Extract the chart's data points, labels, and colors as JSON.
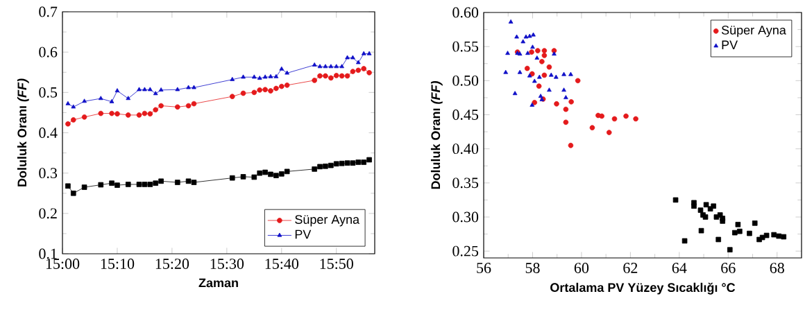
{
  "chart_data": [
    {
      "type": "line",
      "xlabel": "Zaman",
      "ylabel": "Doluluk Oranı *(FF)*",
      "legend": "bottom right",
      "xlim": [
        15,
        15.95
      ],
      "ylim": [
        0.1,
        0.7
      ],
      "xticks": [
        {
          "value": 15,
          "label": "15:00"
        },
        {
          "value": 15.1667,
          "label": "15:10"
        },
        {
          "value": 15.3333,
          "label": "15:20"
        },
        {
          "value": 15.5,
          "label": "15:30"
        },
        {
          "value": 15.6667,
          "label": "15:40"
        },
        {
          "value": 15.8333,
          "label": "15:50"
        }
      ],
      "yticks": [
        0.1,
        0.2,
        0.3,
        0.4,
        0.5,
        0.6,
        0.7
      ],
      "x": [
        15.0167,
        15.0333,
        15.0667,
        15.1167,
        15.15,
        15.1667,
        15.2,
        15.2333,
        15.25,
        15.2667,
        15.2833,
        15.3,
        15.35,
        15.3833,
        15.4,
        15.5167,
        15.55,
        15.5833,
        15.6,
        15.6167,
        15.6333,
        15.65,
        15.6667,
        15.6833,
        15.7667,
        15.7833,
        15.8,
        15.8167,
        15.8333,
        15.85,
        15.8667,
        15.8833,
        15.9,
        15.9167,
        15.9333
      ],
      "series": [
        {
          "color": "#000000",
          "marker": "square",
          "values": [
            0.268,
            0.25,
            0.265,
            0.271,
            0.275,
            0.27,
            0.272,
            0.272,
            0.272,
            0.272,
            0.275,
            0.28,
            0.277,
            0.28,
            0.277,
            0.288,
            0.291,
            0.29,
            0.3,
            0.302,
            0.297,
            0.294,
            0.298,
            0.304,
            0.31,
            0.316,
            0.317,
            0.319,
            0.323,
            0.324,
            0.325,
            0.325,
            0.327,
            0.327,
            0.333
          ]
        },
        {
          "name": "Süper Ayna",
          "color": "#e41a1c",
          "marker": "circle",
          "values": [
            0.422,
            0.432,
            0.439,
            0.448,
            0.448,
            0.447,
            0.444,
            0.444,
            0.448,
            0.447,
            0.457,
            0.467,
            0.464,
            0.467,
            0.472,
            0.49,
            0.498,
            0.5,
            0.506,
            0.507,
            0.504,
            0.51,
            0.515,
            0.518,
            0.53,
            0.541,
            0.541,
            0.536,
            0.542,
            0.541,
            0.541,
            0.552,
            0.555,
            0.559,
            0.549
          ]
        },
        {
          "name": "PV",
          "color": "#1010c8",
          "marker": "triangle",
          "values": [
            0.472,
            0.464,
            0.478,
            0.485,
            0.477,
            0.504,
            0.485,
            0.507,
            0.507,
            0.507,
            0.497,
            0.506,
            0.507,
            0.512,
            0.512,
            0.532,
            0.538,
            0.538,
            0.535,
            0.538,
            0.539,
            0.539,
            0.558,
            0.548,
            0.568,
            0.564,
            0.564,
            0.564,
            0.564,
            0.564,
            0.586,
            0.586,
            0.574,
            0.596,
            0.596
          ]
        }
      ]
    },
    {
      "type": "scatter",
      "xlabel": "Ortalama PV Yüzey Sıcaklığı °C",
      "ylabel": "Doluluk Oranı *(FF)*",
      "legend": "top right",
      "xlim": [
        56,
        69
      ],
      "ylim": [
        0.24,
        0.6
      ],
      "xticks": [
        56,
        58,
        60,
        62,
        64,
        66,
        68
      ],
      "yticks": [
        {
          "value": 0.25,
          "label": "0.25"
        },
        {
          "value": 0.3,
          "label": "0.30"
        },
        {
          "value": 0.35,
          "label": "0.35"
        },
        {
          "value": 0.4,
          "label": "0.40"
        },
        {
          "value": 0.45,
          "label": "0.45"
        },
        {
          "value": 0.5,
          "label": "0.50"
        },
        {
          "value": 0.55,
          "label": "0.55"
        },
        {
          "value": 0.6,
          "label": "0.60"
        }
      ],
      "series": [
        {
          "color": "#000000",
          "marker": "square",
          "x": [
            63.85,
            64.22,
            64.6,
            64.6,
            64.87,
            64.9,
            64.97,
            65.1,
            65.07,
            65.27,
            65.4,
            65.52,
            65.6,
            65.67,
            65.77,
            65.77,
            66.07,
            66.27,
            66.4,
            66.47,
            66.87,
            67.09,
            67.27,
            67.4,
            67.57,
            67.87,
            68.07,
            68.27
          ],
          "values": [
            0.325,
            0.265,
            0.321,
            0.316,
            0.31,
            0.28,
            0.303,
            0.318,
            0.3,
            0.312,
            0.316,
            0.3,
            0.267,
            0.303,
            0.298,
            0.294,
            0.252,
            0.277,
            0.289,
            0.279,
            0.276,
            0.291,
            0.267,
            0.27,
            0.273,
            0.274,
            0.272,
            0.271
          ]
        },
        {
          "name": "Süper Ayna",
          "color": "#e41a1c",
          "marker": "circle",
          "x": [
            57.38,
            57.96,
            58.21,
            58.48,
            58.48,
            58.88,
            57.78,
            57.98,
            58.38,
            58.48,
            58.68,
            58.26,
            59.85,
            58.08,
            58.43,
            58.98,
            59.36,
            59.58,
            59.36,
            60.68,
            60.83,
            61.35,
            61.82,
            62.22,
            60.44,
            61.13,
            59.56
          ],
          "values": [
            0.542,
            0.542,
            0.544,
            0.544,
            0.537,
            0.544,
            0.518,
            0.51,
            0.528,
            0.508,
            0.52,
            0.492,
            0.5,
            0.468,
            0.473,
            0.466,
            0.458,
            0.469,
            0.439,
            0.449,
            0.448,
            0.444,
            0.448,
            0.444,
            0.431,
            0.424,
            0.405
          ]
        },
        {
          "name": "PV",
          "color": "#1010c8",
          "marker": "triangle",
          "x": [
            57.11,
            56.98,
            57.35,
            57.61,
            57.73,
            57.88,
            58.03,
            58.0,
            57.38,
            57.48,
            57.8,
            58.18,
            58.88,
            56.9,
            57.48,
            57.88,
            58.08,
            58.28,
            58.76,
            58.96,
            59.28,
            59.56,
            57.28,
            57.98,
            58.33,
            58.38,
            58.68,
            59.28,
            59.36
          ],
          "values": [
            0.586,
            0.54,
            0.564,
            0.557,
            0.564,
            0.565,
            0.567,
            0.549,
            0.54,
            0.539,
            0.54,
            0.533,
            0.539,
            0.512,
            0.512,
            0.507,
            0.499,
            0.505,
            0.508,
            0.505,
            0.509,
            0.509,
            0.481,
            0.464,
            0.477,
            0.472,
            0.486,
            0.486,
            0.475
          ]
        }
      ]
    }
  ]
}
